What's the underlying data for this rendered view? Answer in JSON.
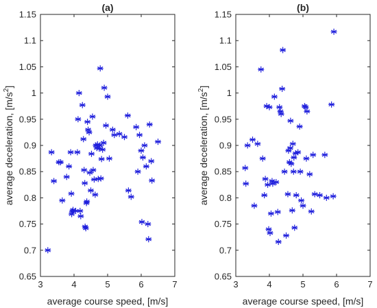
{
  "chart_data": [
    {
      "type": "scatter",
      "title": "(a)",
      "xlabel": "average course speed, [m/s]",
      "ylabel": "average deceleration, [m/s²]",
      "ylabel_parts": [
        "average deceleration, [m/s",
        "2",
        "]"
      ],
      "xlim": [
        3,
        7
      ],
      "ylim": [
        0.65,
        1.15
      ],
      "xticks": [
        "3",
        "4",
        "5",
        "6",
        "7"
      ],
      "yticks": [
        "0.65",
        "0.7",
        "0.75",
        "0.8",
        "0.85",
        "0.9",
        "0.95",
        "1",
        "1.05",
        "1.1",
        "1.15"
      ],
      "grid": false,
      "marker": "asterisk",
      "color": "#1f1fdc",
      "points": [
        [
          3.22,
          0.7
        ],
        [
          3.33,
          0.887
        ],
        [
          3.4,
          0.832
        ],
        [
          3.55,
          0.868
        ],
        [
          3.6,
          0.868
        ],
        [
          3.65,
          0.795
        ],
        [
          3.78,
          0.84
        ],
        [
          3.85,
          0.86
        ],
        [
          3.9,
          0.887
        ],
        [
          3.92,
          0.808
        ],
        [
          3.93,
          0.769
        ],
        [
          3.95,
          0.774
        ],
        [
          3.97,
          0.777
        ],
        [
          4.05,
          0.775
        ],
        [
          4.1,
          0.887
        ],
        [
          4.12,
          0.95
        ],
        [
          4.15,
          1.0
        ],
        [
          4.18,
          0.775
        ],
        [
          4.2,
          0.765
        ],
        [
          4.25,
          0.977
        ],
        [
          4.28,
          0.912
        ],
        [
          4.3,
          0.853
        ],
        [
          4.32,
          0.828
        ],
        [
          4.33,
          0.745
        ],
        [
          4.35,
          0.742
        ],
        [
          4.37,
          0.79
        ],
        [
          4.38,
          0.793
        ],
        [
          4.4,
          0.945
        ],
        [
          4.42,
          0.93
        ],
        [
          4.45,
          0.925
        ],
        [
          4.47,
          0.848
        ],
        [
          4.5,
          0.814
        ],
        [
          4.52,
          0.884
        ],
        [
          4.55,
          0.955
        ],
        [
          4.57,
          0.853
        ],
        [
          4.6,
          0.835
        ],
        [
          4.63,
          0.806
        ],
        [
          4.65,
          0.9
        ],
        [
          4.68,
          0.895
        ],
        [
          4.7,
          0.902
        ],
        [
          4.72,
          0.836
        ],
        [
          4.75,
          0.894
        ],
        [
          4.77,
          0.9
        ],
        [
          4.78,
          1.047
        ],
        [
          4.8,
          0.837
        ],
        [
          4.82,
          0.874
        ],
        [
          4.85,
          0.892
        ],
        [
          4.88,
          0.905
        ],
        [
          4.9,
          1.01
        ],
        [
          4.95,
          0.938
        ],
        [
          5.0,
          0.993
        ],
        [
          5.05,
          0.875
        ],
        [
          5.15,
          0.93
        ],
        [
          5.2,
          0.92
        ],
        [
          5.35,
          0.922
        ],
        [
          5.5,
          0.916
        ],
        [
          5.6,
          0.957
        ],
        [
          5.62,
          0.814
        ],
        [
          5.7,
          0.802
        ],
        [
          5.85,
          0.935
        ],
        [
          5.9,
          0.85
        ],
        [
          5.95,
          0.92
        ],
        [
          6.0,
          0.89
        ],
        [
          6.02,
          0.754
        ],
        [
          6.05,
          0.877
        ],
        [
          6.1,
          0.9
        ],
        [
          6.15,
          0.86
        ],
        [
          6.2,
          0.75
        ],
        [
          6.22,
          0.721
        ],
        [
          6.25,
          0.94
        ],
        [
          6.3,
          0.87
        ],
        [
          6.32,
          0.833
        ],
        [
          6.5,
          0.907
        ]
      ]
    },
    {
      "type": "scatter",
      "title": "(b)",
      "xlabel": "average course speed, [m/s]",
      "ylabel": "average deceleration, [m/s²]",
      "ylabel_parts": [
        "average deceleration, [m/s",
        "2",
        "]"
      ],
      "xlim": [
        3,
        7
      ],
      "ylim": [
        0.65,
        1.15
      ],
      "xticks": [
        "3",
        "4",
        "5",
        "6",
        "7"
      ],
      "yticks": [
        "0.65",
        "0.7",
        "0.75",
        "0.8",
        "0.85",
        "0.9",
        "0.95",
        "1",
        "1.05",
        "1.1",
        "1.15"
      ],
      "grid": false,
      "marker": "asterisk",
      "color": "#1f1fdc",
      "points": [
        [
          3.28,
          0.857
        ],
        [
          3.3,
          0.827
        ],
        [
          3.35,
          0.9
        ],
        [
          3.5,
          0.911
        ],
        [
          3.55,
          0.785
        ],
        [
          3.65,
          0.903
        ],
        [
          3.75,
          1.045
        ],
        [
          3.8,
          0.875
        ],
        [
          3.85,
          0.805
        ],
        [
          3.88,
          0.836
        ],
        [
          3.92,
          0.975
        ],
        [
          3.95,
          0.825
        ],
        [
          3.98,
          0.74
        ],
        [
          4.0,
          0.973
        ],
        [
          4.02,
          0.733
        ],
        [
          4.05,
          0.77
        ],
        [
          4.08,
          0.832
        ],
        [
          4.1,
          0.827
        ],
        [
          4.15,
          0.993
        ],
        [
          4.2,
          0.83
        ],
        [
          4.25,
          0.773
        ],
        [
          4.27,
          0.716
        ],
        [
          4.3,
          0.973
        ],
        [
          4.33,
          0.965
        ],
        [
          4.35,
          0.96
        ],
        [
          4.38,
          1.008
        ],
        [
          4.4,
          1.082
        ],
        [
          4.45,
          0.85
        ],
        [
          4.5,
          0.728
        ],
        [
          4.55,
          0.807
        ],
        [
          4.57,
          0.89
        ],
        [
          4.6,
          0.868
        ],
        [
          4.62,
          0.895
        ],
        [
          4.63,
          0.947
        ],
        [
          4.65,
          0.865
        ],
        [
          4.68,
          0.776
        ],
        [
          4.7,
          0.903
        ],
        [
          4.72,
          0.85
        ],
        [
          4.73,
          0.877
        ],
        [
          4.75,
          0.743
        ],
        [
          4.78,
          0.885
        ],
        [
          4.8,
          0.805
        ],
        [
          4.85,
          0.887
        ],
        [
          4.9,
          0.936
        ],
        [
          4.92,
          0.85
        ],
        [
          4.95,
          0.795
        ],
        [
          5.0,
          0.785
        ],
        [
          5.05,
          0.975
        ],
        [
          5.08,
          0.973
        ],
        [
          5.1,
          0.875
        ],
        [
          5.12,
          0.965
        ],
        [
          5.2,
          0.845
        ],
        [
          5.25,
          0.774
        ],
        [
          5.3,
          0.882
        ],
        [
          5.35,
          0.807
        ],
        [
          5.5,
          0.805
        ],
        [
          5.65,
          0.882
        ],
        [
          5.7,
          0.8
        ],
        [
          5.85,
          0.978
        ],
        [
          5.9,
          0.803
        ],
        [
          5.92,
          1.117
        ]
      ]
    }
  ]
}
